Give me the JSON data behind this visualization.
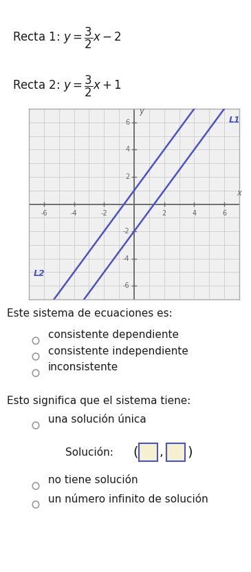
{
  "line1_slope": 1.5,
  "line1_intercept": -2,
  "line2_slope": 1.5,
  "line2_intercept": 1,
  "line_color": "#4a52c8",
  "xlim": [
    -7,
    7
  ],
  "ylim": [
    -7,
    7
  ],
  "xticks": [
    -6,
    -4,
    -2,
    2,
    4,
    6
  ],
  "yticks": [
    -6,
    -4,
    -2,
    2,
    4,
    6
  ],
  "grid_color": "#cccccc",
  "axis_color": "#666666",
  "background_color": "#ffffff",
  "plot_bg_color": "#f0f0f0",
  "question1": "Este sistema de ecuaciones es:",
  "option1a": "consistente dependiente",
  "option1b": "consistente independiente",
  "option1c": "inconsistente",
  "question2": "Esto significa que el sistema tiene:",
  "option2a": "una solución única",
  "solution_label": "Solución:",
  "option2c": "no tiene solución",
  "option2d": "un número infinito de solución",
  "text_color": "#1a1a1a",
  "radio_color": "#999999",
  "box_color": "#4a52c8",
  "box_fill": "#f5f0d0"
}
